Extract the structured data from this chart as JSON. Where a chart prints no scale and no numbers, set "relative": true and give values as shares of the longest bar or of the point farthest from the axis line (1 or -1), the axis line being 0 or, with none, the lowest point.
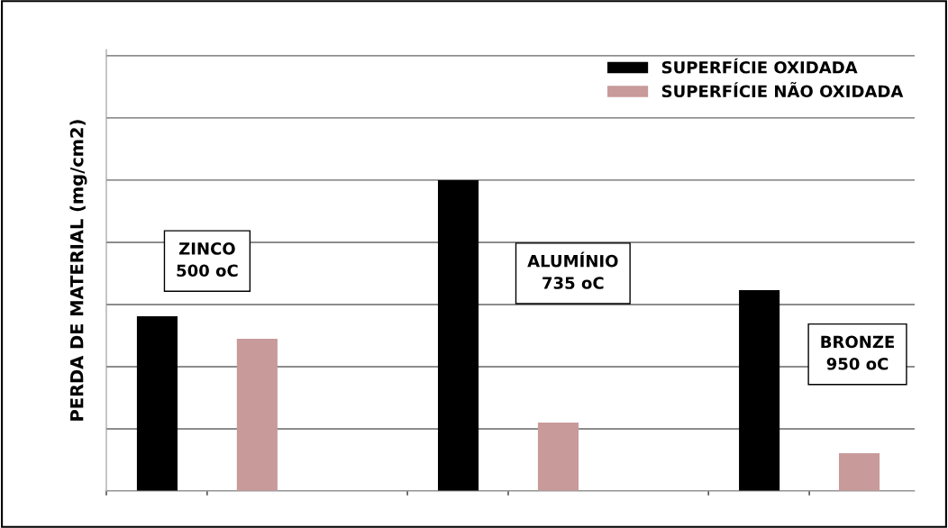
{
  "chart_data": {
    "type": "bar",
    "relative": true,
    "ylabel": "PERDA DE MATERIAL (mg/cm2)",
    "categories": [
      null,
      null,
      null
    ],
    "series": [
      {
        "name": "SUPERFÍCIE OXIDADA",
        "color": "#000000",
        "values": [
          0.562,
          1,
          0.646
        ]
      },
      {
        "name": "SUPERFÍCIE NÃO OXIDADA",
        "color": "#c89a9a",
        "values": [
          0.49,
          0.22,
          0.122
        ]
      }
    ],
    "annotations": [
      "ZINCO\n500 oC",
      "ALUMÍNIO\n735 oC",
      "BRONZE\n950 oC"
    ],
    "grid": "y",
    "legend": "top right"
  }
}
